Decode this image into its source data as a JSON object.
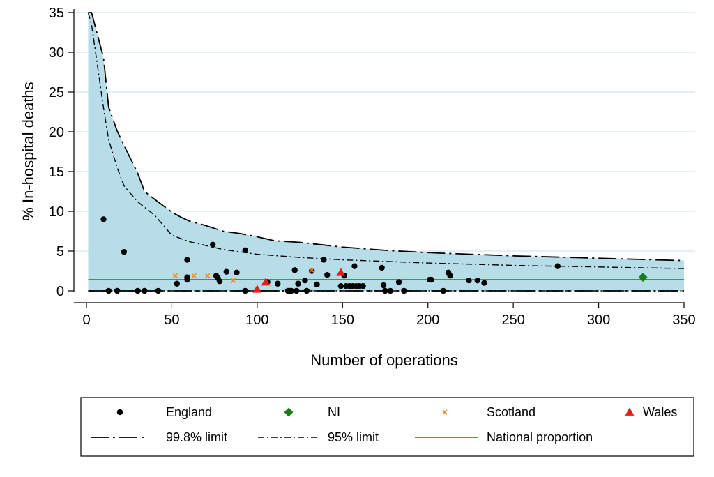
{
  "chart_data": {
    "type": "scatter",
    "title": "",
    "xlabel": "Number of operations",
    "ylabel": "% In-hospital deaths",
    "xlim": [
      0,
      350
    ],
    "ylim": [
      0,
      35
    ],
    "x_ticks": [
      0,
      50,
      100,
      150,
      200,
      250,
      300,
      350
    ],
    "y_ticks": [
      0,
      5,
      10,
      15,
      20,
      25,
      30,
      35
    ],
    "grid": true,
    "legend_position": "bottom",
    "national_proportion": 1.4,
    "series": [
      {
        "name": "England",
        "marker": "circle",
        "color": "#000000",
        "points": [
          [
            10,
            9.0
          ],
          [
            13,
            0
          ],
          [
            18,
            0
          ],
          [
            22,
            4.9
          ],
          [
            30,
            0
          ],
          [
            34,
            0
          ],
          [
            42,
            0
          ],
          [
            53,
            0.9
          ],
          [
            59,
            1.4
          ],
          [
            59,
            1.7
          ],
          [
            59,
            3.9
          ],
          [
            74,
            5.8
          ],
          [
            76,
            1.9
          ],
          [
            77,
            1.6
          ],
          [
            78,
            1.2
          ],
          [
            82,
            2.4
          ],
          [
            88,
            2.3
          ],
          [
            93,
            5.1
          ],
          [
            93,
            0
          ],
          [
            106,
            1.1
          ],
          [
            112,
            0.9
          ],
          [
            118,
            0
          ],
          [
            119,
            0
          ],
          [
            120,
            0
          ],
          [
            122,
            2.6
          ],
          [
            123,
            0
          ],
          [
            124,
            0.9
          ],
          [
            128,
            1.3
          ],
          [
            129,
            0
          ],
          [
            132,
            2.5
          ],
          [
            135,
            0.8
          ],
          [
            139,
            3.9
          ],
          [
            141,
            2.0
          ],
          [
            149,
            0.6
          ],
          [
            151,
            1.9
          ],
          [
            152,
            0.6
          ],
          [
            154,
            0.6
          ],
          [
            156,
            0.6
          ],
          [
            157,
            3.1
          ],
          [
            158,
            0.6
          ],
          [
            160,
            0.6
          ],
          [
            162,
            0.6
          ],
          [
            173,
            2.9
          ],
          [
            174,
            0.7
          ],
          [
            175,
            0
          ],
          [
            178,
            0
          ],
          [
            183,
            1.1
          ],
          [
            186,
            0
          ],
          [
            201,
            1.4
          ],
          [
            202,
            1.4
          ],
          [
            209,
            0
          ],
          [
            212,
            2.3
          ],
          [
            213,
            1.9
          ],
          [
            224,
            1.3
          ],
          [
            229,
            1.3
          ],
          [
            233,
            1.0
          ],
          [
            276,
            3.1
          ]
        ]
      },
      {
        "name": "NI",
        "marker": "diamond",
        "color": "#1a7f1a",
        "points": [
          [
            326,
            1.7
          ]
        ]
      },
      {
        "name": "Scotland",
        "marker": "x",
        "color": "#f08a24",
        "points": [
          [
            52,
            1.9
          ],
          [
            63,
            1.9
          ],
          [
            71,
            1.9
          ],
          [
            86,
            1.3
          ],
          [
            132,
            2.6
          ]
        ]
      },
      {
        "name": "Wales",
        "marker": "triangle",
        "color": "#e81c1c",
        "points": [
          [
            100,
            0.2
          ],
          [
            105,
            1.1
          ],
          [
            149,
            2.3
          ]
        ]
      },
      {
        "name": "99.8% limit",
        "kind": "line",
        "style": "long-dash-dot",
        "upper": [
          [
            1,
            35
          ],
          [
            3,
            35
          ],
          [
            10,
            29.3
          ],
          [
            13,
            23.1
          ],
          [
            18,
            20.1
          ],
          [
            22,
            18.3
          ],
          [
            30,
            14.8
          ],
          [
            34,
            12.5
          ],
          [
            40,
            11.5
          ],
          [
            50,
            9.9
          ],
          [
            55,
            9.3
          ],
          [
            60,
            8.8
          ],
          [
            70,
            8.2
          ],
          [
            80,
            7.5
          ],
          [
            90,
            7.2
          ],
          [
            100,
            6.8
          ],
          [
            110,
            6.3
          ],
          [
            125,
            6.1
          ],
          [
            150,
            5.5
          ],
          [
            175,
            5.1
          ],
          [
            200,
            4.8
          ],
          [
            250,
            4.4
          ],
          [
            300,
            4.1
          ],
          [
            350,
            3.8
          ]
        ],
        "lower": [
          [
            1,
            0
          ],
          [
            350,
            0
          ]
        ]
      },
      {
        "name": "95% limit",
        "kind": "line",
        "style": "short-dash-dot",
        "upper": [
          [
            1,
            35
          ],
          [
            3,
            33.5
          ],
          [
            8,
            26.0
          ],
          [
            10,
            23.0
          ],
          [
            13,
            19.0
          ],
          [
            18,
            15.5
          ],
          [
            22,
            13.2
          ],
          [
            30,
            11.2
          ],
          [
            40,
            9.5
          ],
          [
            50,
            7.0
          ],
          [
            60,
            6.2
          ],
          [
            70,
            5.7
          ],
          [
            80,
            5.2
          ],
          [
            90,
            4.9
          ],
          [
            100,
            4.6
          ],
          [
            125,
            4.2
          ],
          [
            150,
            3.9
          ],
          [
            175,
            3.7
          ],
          [
            200,
            3.5
          ],
          [
            250,
            3.2
          ],
          [
            300,
            3.0
          ],
          [
            350,
            2.8
          ]
        ],
        "lower": [
          [
            1,
            0
          ],
          [
            350,
            0
          ]
        ]
      },
      {
        "name": "National proportion",
        "kind": "line",
        "style": "solid",
        "color": "#1a7f1a"
      }
    ]
  },
  "colors": {
    "band_fill": "#b7dde8",
    "grid": "#d5e6ec",
    "axis": "#000000"
  }
}
